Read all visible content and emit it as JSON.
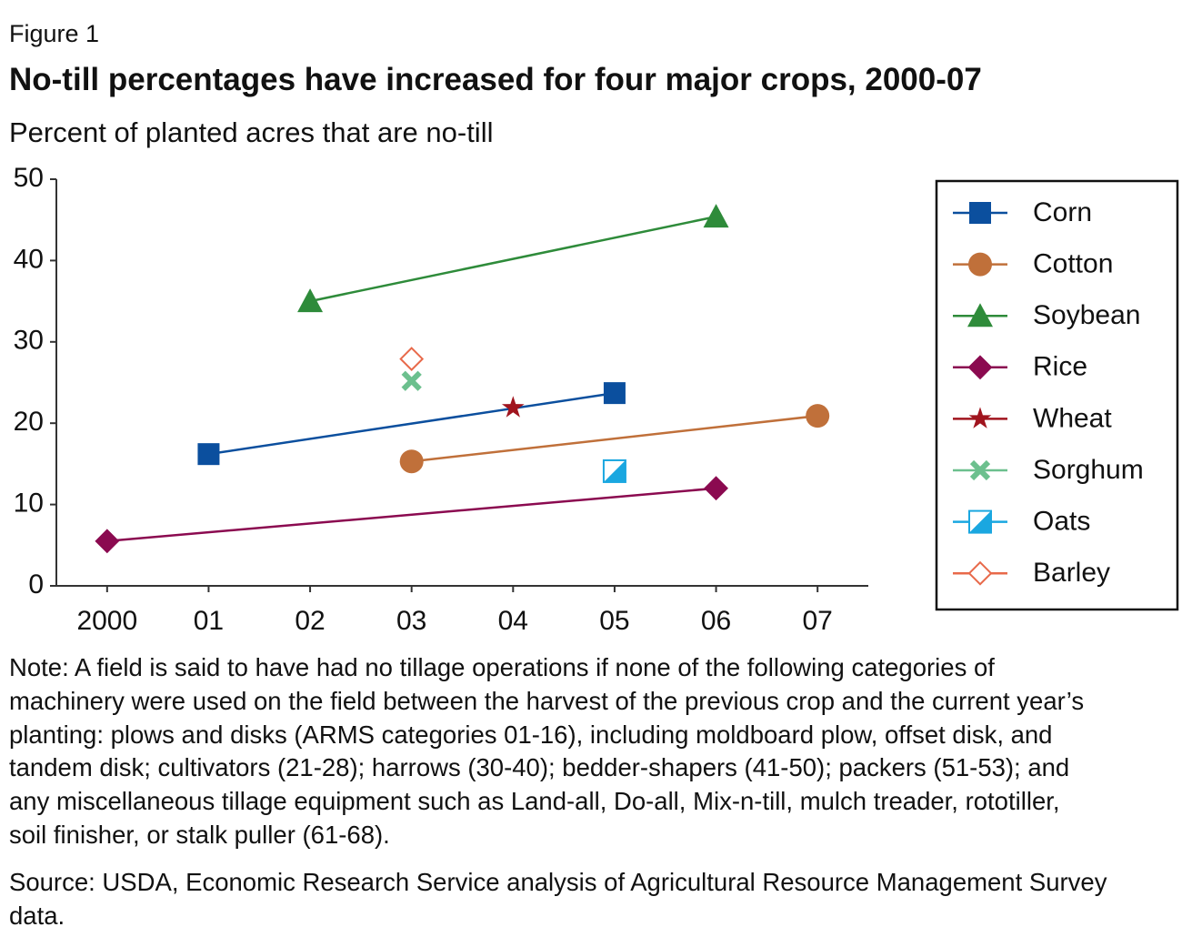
{
  "figure_label": "Figure 1",
  "chart_data": {
    "type": "line",
    "title": "No-till percentages have increased for four major crops, 2000-07",
    "subtitle": "Percent of planted acres that are no-till",
    "xlim": [
      1999.5,
      2007.5
    ],
    "xticks": [
      {
        "value": 2000,
        "label": "2000"
      },
      {
        "value": 2001,
        "label": "01"
      },
      {
        "value": 2002,
        "label": "02"
      },
      {
        "value": 2003,
        "label": "03"
      },
      {
        "value": 2004,
        "label": "04"
      },
      {
        "value": 2005,
        "label": "05"
      },
      {
        "value": 2006,
        "label": "06"
      },
      {
        "value": 2007,
        "label": "07"
      }
    ],
    "ylim": [
      0,
      50
    ],
    "yticks": [
      0,
      10,
      20,
      30,
      40,
      50
    ],
    "legend": "right",
    "series": [
      {
        "name": "Corn",
        "color": "#0b4f9e",
        "marker": "square",
        "x": [
          2001,
          2005
        ],
        "values": [
          16.2,
          23.7
        ]
      },
      {
        "name": "Cotton",
        "color": "#c0703a",
        "marker": "circle",
        "x": [
          2003,
          2007
        ],
        "values": [
          15.3,
          20.9
        ]
      },
      {
        "name": "Soybean",
        "color": "#2e8b3a",
        "marker": "triangle",
        "x": [
          2002,
          2006
        ],
        "values": [
          35.0,
          45.4
        ]
      },
      {
        "name": "Rice",
        "color": "#8b0a50",
        "marker": "diamond",
        "x": [
          2000,
          2006
        ],
        "values": [
          5.5,
          12.0
        ]
      },
      {
        "name": "Wheat",
        "color": "#a0141e",
        "marker": "star",
        "x": [
          2004
        ],
        "values": [
          21.9
        ]
      },
      {
        "name": "Sorghum",
        "color": "#6cc08e",
        "marker": "cross",
        "x": [
          2003
        ],
        "values": [
          25.2
        ]
      },
      {
        "name": "Oats",
        "color": "#1aa7e0",
        "marker": "half-square",
        "x": [
          2005
        ],
        "values": [
          14.1
        ]
      },
      {
        "name": "Barley",
        "color": "#e8694a",
        "marker": "open-diamond",
        "x": [
          2003
        ],
        "values": [
          27.9
        ]
      }
    ]
  },
  "note": "Note: A field is said to have had no tillage operations if none of the following categories of machinery were used on the field between the harvest of the previous crop and the current year’s planting: plows and disks (ARMS categories 01-16), including moldboard plow, offset disk, and tandem disk; cultivators (21-28); harrows (30-40); bedder-shapers (41-50); packers (51-53); and any miscellaneous tillage equipment such as Land-all, Do-all, Mix-n-till, mulch treader, rototiller, soil finisher, or stalk puller (61-68).",
  "source": "Source: USDA, Economic Research Service analysis of Agricultural Resource Management Survey data."
}
